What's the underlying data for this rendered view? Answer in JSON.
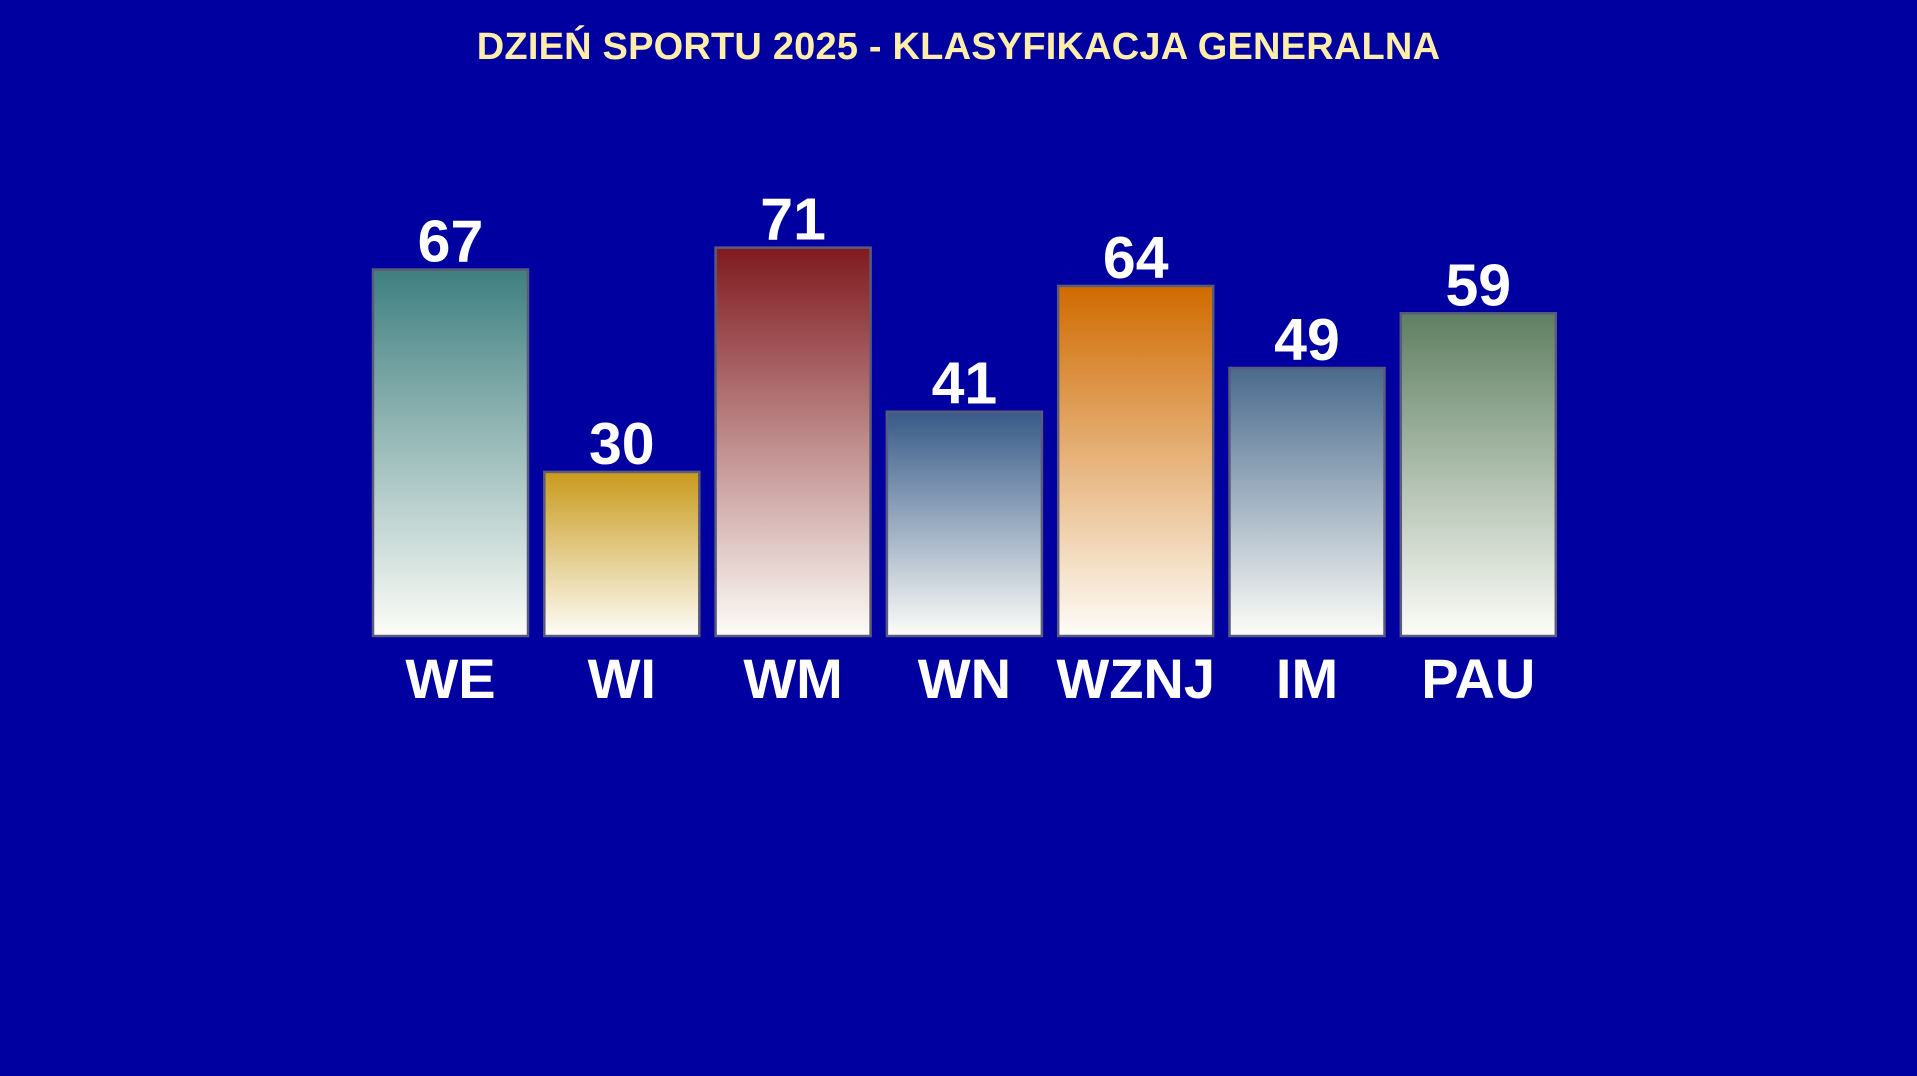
{
  "background_color": "#0000a0",
  "title_color": "#ffeeaa",
  "chart_data": {
    "type": "bar",
    "title": "DZIEŃ SPORTU 2025 - KLASYFIKACJA GENERALNA",
    "xlabel": "",
    "ylabel": "",
    "categories": [
      "WE",
      "WI",
      "WM",
      "WN",
      "WZNJ",
      "IM",
      "PAU"
    ],
    "values": [
      67,
      30,
      71,
      41,
      64,
      49,
      59
    ],
    "bar_colors": [
      "#3f7f80",
      "#c99a1c",
      "#7f1a1f",
      "#375a88",
      "#d06a00",
      "#4a6a8c",
      "#5f7f62"
    ],
    "ylim": [
      0,
      80
    ],
    "grid": false,
    "legend": "none",
    "data_labels": true
  }
}
